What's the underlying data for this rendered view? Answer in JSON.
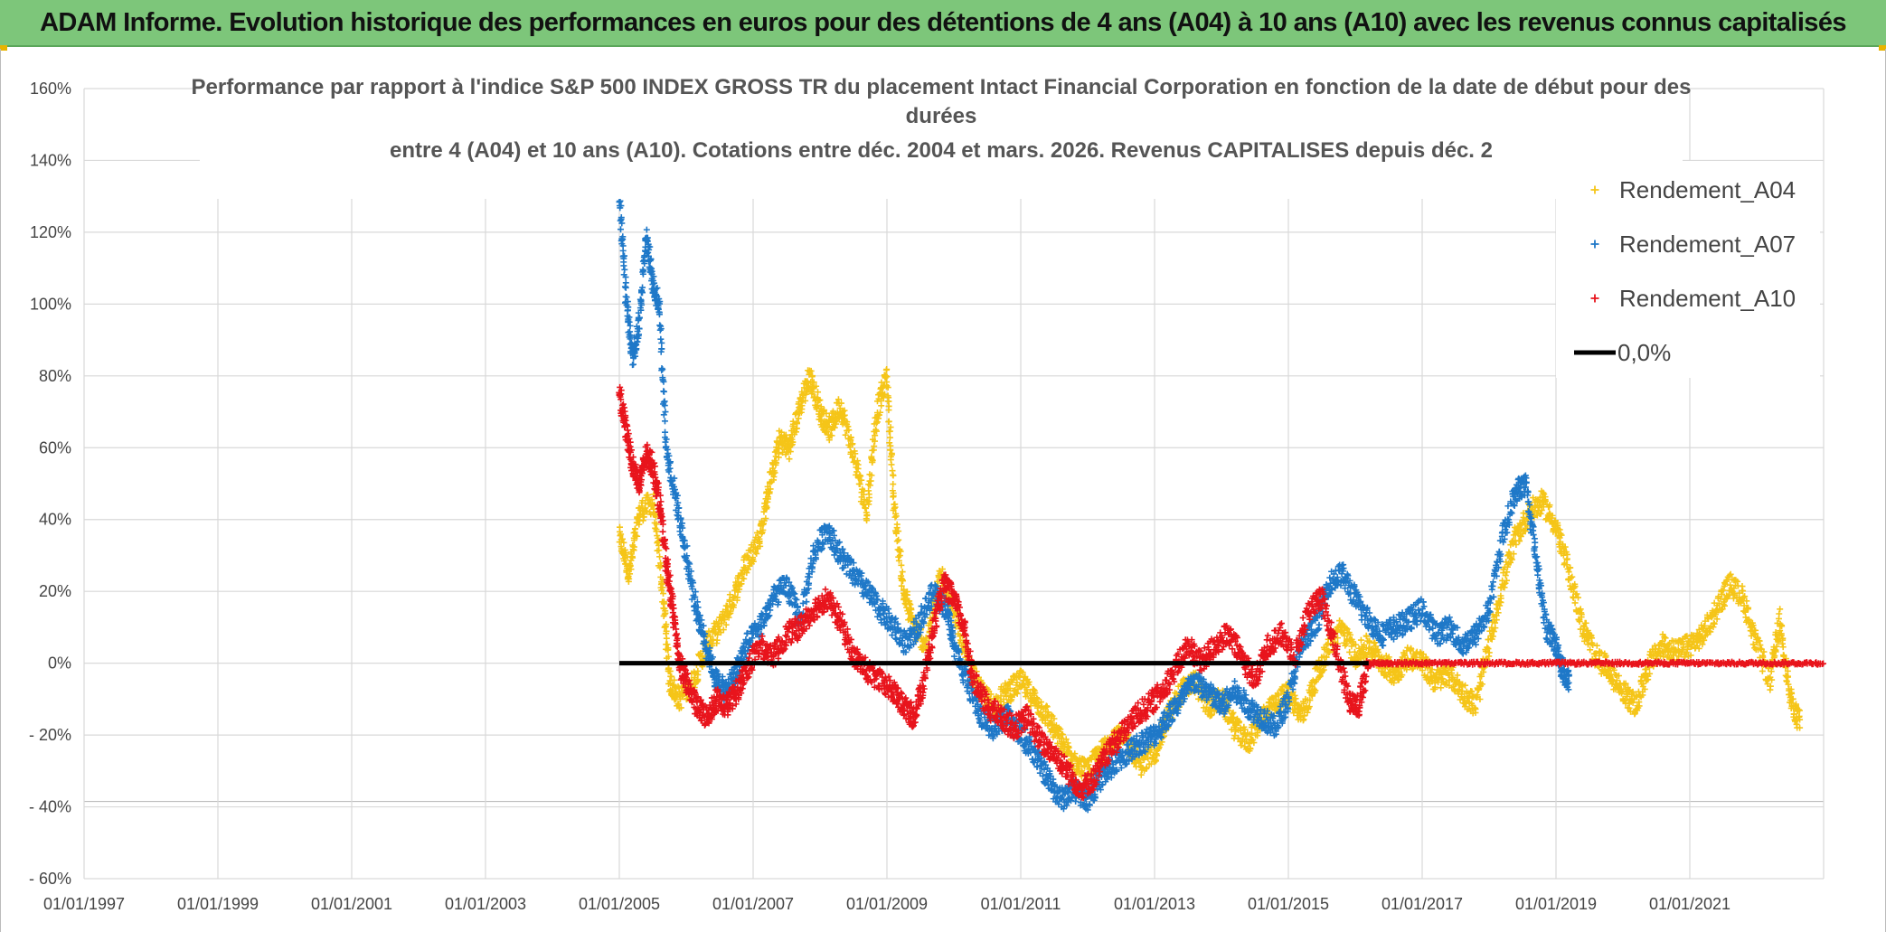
{
  "banner": {
    "title": "ADAM Informe. Evolution historique des performances en euros pour des détentions de 4 ans (A04) à 10 ans (A10) avec les revenus connus capitalisés"
  },
  "colors": {
    "banner_bg": "#7dc67a",
    "a04": "#f5c518",
    "a07": "#1f78c8",
    "a10": "#e8141c",
    "zero": "#000000",
    "grid": "#d9d9d9"
  },
  "chart_data": {
    "type": "scatter",
    "title_lines": [
      "Performance par rapport à l'indice S&P 500 INDEX GROSS TR  du placement Intact Financial Corporation en fonction de la date de début pour des",
      "durées",
      "entre 4 (A04) et 10 ans (A10). Cotations entre déc. 2004 et mars. 2026. Revenus CAPITALISES depuis déc. 2"
    ],
    "x_domain": [
      1997.0,
      2023.0
    ],
    "ylim": [
      -60,
      160
    ],
    "y_ticks": [
      {
        "value": 160,
        "label": "160%"
      },
      {
        "value": 140,
        "label": "140%"
      },
      {
        "value": 120,
        "label": "120%"
      },
      {
        "value": 100,
        "label": "100%"
      },
      {
        "value": 80,
        "label": "80%"
      },
      {
        "value": 60,
        "label": "60%"
      },
      {
        "value": 40,
        "label": "40%"
      },
      {
        "value": 20,
        "label": "20%"
      },
      {
        "value": 0,
        "label": "0%"
      },
      {
        "value": -20,
        "label": "- 20%"
      },
      {
        "value": -40,
        "label": "- 40%"
      },
      {
        "value": -60,
        "label": "- 60%"
      }
    ],
    "x_ticks": [
      {
        "value": 1997,
        "label": "01/01/1997"
      },
      {
        "value": 1999,
        "label": "01/01/1999"
      },
      {
        "value": 2001,
        "label": "01/01/2001"
      },
      {
        "value": 2003,
        "label": "01/01/2003"
      },
      {
        "value": 2005,
        "label": "01/01/2005"
      },
      {
        "value": 2007,
        "label": "01/01/2007"
      },
      {
        "value": 2009,
        "label": "01/01/2009"
      },
      {
        "value": 2011,
        "label": "01/01/2011"
      },
      {
        "value": 2013,
        "label": "01/01/2013"
      },
      {
        "value": 2015,
        "label": "01/01/2015"
      },
      {
        "value": 2017,
        "label": "01/01/2017"
      },
      {
        "value": 2019,
        "label": "01/01/2019"
      },
      {
        "value": 2021,
        "label": "01/01/2021"
      }
    ],
    "legend": [
      {
        "name": "Rendement_A04",
        "marker": "+",
        "color": "#f5c518"
      },
      {
        "name": "Rendement_A07",
        "marker": "+",
        "color": "#1f78c8"
      },
      {
        "name": "Rendement_A10",
        "marker": "+",
        "color": "#e8141c"
      },
      {
        "name": "0,0%",
        "marker": "line",
        "color": "#000000"
      }
    ],
    "series": [
      {
        "name": "Rendement_A04",
        "color": "#f5c518",
        "points": [
          [
            2005.0,
            35
          ],
          [
            2005.15,
            25
          ],
          [
            2005.3,
            42
          ],
          [
            2005.5,
            45
          ],
          [
            2005.65,
            20
          ],
          [
            2005.75,
            -5
          ],
          [
            2005.9,
            -10
          ],
          [
            2006.1,
            -5
          ],
          [
            2006.3,
            5
          ],
          [
            2006.5,
            10
          ],
          [
            2006.7,
            18
          ],
          [
            2006.9,
            28
          ],
          [
            2007.1,
            35
          ],
          [
            2007.25,
            50
          ],
          [
            2007.4,
            62
          ],
          [
            2007.55,
            60
          ],
          [
            2007.7,
            72
          ],
          [
            2007.85,
            80
          ],
          [
            2008.0,
            70
          ],
          [
            2008.15,
            65
          ],
          [
            2008.3,
            72
          ],
          [
            2008.5,
            58
          ],
          [
            2008.7,
            42
          ],
          [
            2008.85,
            70
          ],
          [
            2009.0,
            80
          ],
          [
            2009.1,
            45
          ],
          [
            2009.25,
            20
          ],
          [
            2009.4,
            10
          ],
          [
            2009.6,
            5
          ],
          [
            2009.8,
            25
          ],
          [
            2010.0,
            15
          ],
          [
            2010.2,
            0
          ],
          [
            2010.4,
            -8
          ],
          [
            2010.6,
            -12
          ],
          [
            2010.8,
            -8
          ],
          [
            2011.0,
            -5
          ],
          [
            2011.2,
            -10
          ],
          [
            2011.4,
            -15
          ],
          [
            2011.6,
            -22
          ],
          [
            2011.8,
            -28
          ],
          [
            2012.0,
            -30
          ],
          [
            2012.2,
            -25
          ],
          [
            2012.4,
            -20
          ],
          [
            2012.6,
            -22
          ],
          [
            2012.8,
            -28
          ],
          [
            2013.0,
            -25
          ],
          [
            2013.2,
            -15
          ],
          [
            2013.4,
            -8
          ],
          [
            2013.6,
            -5
          ],
          [
            2013.8,
            -12
          ],
          [
            2014.0,
            -10
          ],
          [
            2014.2,
            -18
          ],
          [
            2014.4,
            -22
          ],
          [
            2014.6,
            -15
          ],
          [
            2014.8,
            -12
          ],
          [
            2015.0,
            -8
          ],
          [
            2015.2,
            -15
          ],
          [
            2015.4,
            -5
          ],
          [
            2015.6,
            5
          ],
          [
            2015.8,
            10
          ],
          [
            2016.0,
            2
          ],
          [
            2016.2,
            5
          ],
          [
            2016.4,
            0
          ],
          [
            2016.6,
            -3
          ],
          [
            2016.8,
            2
          ],
          [
            2017.0,
            0
          ],
          [
            2017.2,
            -5
          ],
          [
            2017.4,
            -3
          ],
          [
            2017.6,
            -8
          ],
          [
            2017.8,
            -12
          ],
          [
            2018.0,
            5
          ],
          [
            2018.2,
            22
          ],
          [
            2018.4,
            35
          ],
          [
            2018.6,
            42
          ],
          [
            2018.8,
            45
          ],
          [
            2019.0,
            38
          ],
          [
            2019.2,
            25
          ],
          [
            2019.4,
            10
          ],
          [
            2019.6,
            2
          ],
          [
            2019.8,
            -2
          ],
          [
            2020.0,
            -8
          ],
          [
            2020.2,
            -12
          ],
          [
            2020.4,
            0
          ],
          [
            2020.6,
            5
          ],
          [
            2020.8,
            3
          ],
          [
            2021.0,
            5
          ],
          [
            2021.2,
            8
          ],
          [
            2021.4,
            15
          ],
          [
            2021.6,
            22
          ],
          [
            2021.8,
            18
          ],
          [
            2022.0,
            5
          ],
          [
            2022.2,
            -5
          ],
          [
            2022.35,
            12
          ],
          [
            2022.5,
            -10
          ],
          [
            2022.65,
            -17
          ]
        ]
      },
      {
        "name": "Rendement_A07",
        "color": "#1f78c8",
        "points": [
          [
            2005.0,
            130
          ],
          [
            2005.1,
            102
          ],
          [
            2005.2,
            85
          ],
          [
            2005.3,
            95
          ],
          [
            2005.4,
            120
          ],
          [
            2005.5,
            105
          ],
          [
            2005.6,
            100
          ],
          [
            2005.7,
            60
          ],
          [
            2005.85,
            45
          ],
          [
            2006.0,
            30
          ],
          [
            2006.15,
            15
          ],
          [
            2006.3,
            5
          ],
          [
            2006.45,
            -5
          ],
          [
            2006.6,
            -8
          ],
          [
            2006.75,
            -2
          ],
          [
            2006.9,
            5
          ],
          [
            2007.1,
            10
          ],
          [
            2007.3,
            18
          ],
          [
            2007.5,
            22
          ],
          [
            2007.7,
            12
          ],
          [
            2007.9,
            30
          ],
          [
            2008.1,
            38
          ],
          [
            2008.3,
            30
          ],
          [
            2008.5,
            25
          ],
          [
            2008.7,
            20
          ],
          [
            2008.9,
            15
          ],
          [
            2009.1,
            10
          ],
          [
            2009.3,
            5
          ],
          [
            2009.5,
            12
          ],
          [
            2009.7,
            20
          ],
          [
            2009.9,
            15
          ],
          [
            2010.0,
            5
          ],
          [
            2010.2,
            -5
          ],
          [
            2010.4,
            -15
          ],
          [
            2010.6,
            -18
          ],
          [
            2010.8,
            -15
          ],
          [
            2011.0,
            -20
          ],
          [
            2011.2,
            -25
          ],
          [
            2011.4,
            -32
          ],
          [
            2011.6,
            -38
          ],
          [
            2011.8,
            -35
          ],
          [
            2012.0,
            -38
          ],
          [
            2012.2,
            -32
          ],
          [
            2012.4,
            -28
          ],
          [
            2012.6,
            -25
          ],
          [
            2012.8,
            -22
          ],
          [
            2013.0,
            -20
          ],
          [
            2013.2,
            -15
          ],
          [
            2013.4,
            -10
          ],
          [
            2013.6,
            -5
          ],
          [
            2013.8,
            -8
          ],
          [
            2014.0,
            -12
          ],
          [
            2014.2,
            -8
          ],
          [
            2014.4,
            -12
          ],
          [
            2014.6,
            -15
          ],
          [
            2014.8,
            -18
          ],
          [
            2015.0,
            -10
          ],
          [
            2015.2,
            5
          ],
          [
            2015.4,
            10
          ],
          [
            2015.6,
            22
          ],
          [
            2015.8,
            25
          ],
          [
            2016.0,
            18
          ],
          [
            2016.2,
            12
          ],
          [
            2016.4,
            8
          ],
          [
            2016.6,
            10
          ],
          [
            2016.8,
            12
          ],
          [
            2017.0,
            15
          ],
          [
            2017.2,
            8
          ],
          [
            2017.4,
            10
          ],
          [
            2017.6,
            5
          ],
          [
            2017.8,
            8
          ],
          [
            2018.0,
            15
          ],
          [
            2018.2,
            35
          ],
          [
            2018.4,
            48
          ],
          [
            2018.55,
            50
          ],
          [
            2018.7,
            30
          ],
          [
            2018.85,
            10
          ],
          [
            2019.0,
            5
          ],
          [
            2019.1,
            -2
          ],
          [
            2019.2,
            -6
          ]
        ]
      },
      {
        "name": "Rendement_A10",
        "color": "#e8141c",
        "points": [
          [
            2005.0,
            75
          ],
          [
            2005.1,
            65
          ],
          [
            2005.2,
            55
          ],
          [
            2005.3,
            50
          ],
          [
            2005.4,
            58
          ],
          [
            2005.5,
            55
          ],
          [
            2005.6,
            45
          ],
          [
            2005.7,
            28
          ],
          [
            2005.8,
            15
          ],
          [
            2005.9,
            0
          ],
          [
            2006.0,
            -5
          ],
          [
            2006.15,
            -12
          ],
          [
            2006.3,
            -15
          ],
          [
            2006.45,
            -10
          ],
          [
            2006.6,
            -12
          ],
          [
            2006.75,
            -8
          ],
          [
            2006.9,
            -2
          ],
          [
            2007.1,
            5
          ],
          [
            2007.3,
            2
          ],
          [
            2007.5,
            8
          ],
          [
            2007.7,
            10
          ],
          [
            2007.9,
            15
          ],
          [
            2008.1,
            18
          ],
          [
            2008.3,
            12
          ],
          [
            2008.5,
            2
          ],
          [
            2008.7,
            -2
          ],
          [
            2008.9,
            -5
          ],
          [
            2009.1,
            -8
          ],
          [
            2009.25,
            -12
          ],
          [
            2009.4,
            -15
          ],
          [
            2009.55,
            -5
          ],
          [
            2009.7,
            10
          ],
          [
            2009.85,
            22
          ],
          [
            2010.0,
            18
          ],
          [
            2010.15,
            10
          ],
          [
            2010.3,
            -5
          ],
          [
            2010.5,
            -12
          ],
          [
            2010.7,
            -15
          ],
          [
            2010.9,
            -18
          ],
          [
            2011.1,
            -15
          ],
          [
            2011.3,
            -22
          ],
          [
            2011.5,
            -25
          ],
          [
            2011.7,
            -30
          ],
          [
            2011.9,
            -35
          ],
          [
            2012.1,
            -32
          ],
          [
            2012.3,
            -25
          ],
          [
            2012.5,
            -20
          ],
          [
            2012.7,
            -15
          ],
          [
            2012.9,
            -12
          ],
          [
            2013.1,
            -8
          ],
          [
            2013.3,
            -2
          ],
          [
            2013.5,
            5
          ],
          [
            2013.7,
            0
          ],
          [
            2013.9,
            5
          ],
          [
            2014.1,
            8
          ],
          [
            2014.3,
            2
          ],
          [
            2014.5,
            -5
          ],
          [
            2014.7,
            5
          ],
          [
            2014.9,
            8
          ],
          [
            2015.1,
            2
          ],
          [
            2015.3,
            15
          ],
          [
            2015.5,
            18
          ],
          [
            2015.7,
            5
          ],
          [
            2015.9,
            -10
          ],
          [
            2016.05,
            -12
          ],
          [
            2016.2,
            0
          ],
          [
            2016.5,
            0
          ],
          [
            2017.0,
            0
          ],
          [
            2017.5,
            0
          ],
          [
            2018.0,
            0
          ],
          [
            2018.5,
            0
          ],
          [
            2019.0,
            0
          ],
          [
            2019.5,
            0
          ],
          [
            2020.0,
            0
          ],
          [
            2020.5,
            0
          ],
          [
            2021.0,
            0
          ],
          [
            2021.5,
            0
          ],
          [
            2022.0,
            0
          ],
          [
            2022.5,
            0
          ],
          [
            2023.0,
            0
          ]
        ]
      },
      {
        "name": "0,0%",
        "color": "#000000",
        "line": [
          [
            2005.0,
            0
          ],
          [
            2016.2,
            0
          ]
        ]
      }
    ]
  }
}
